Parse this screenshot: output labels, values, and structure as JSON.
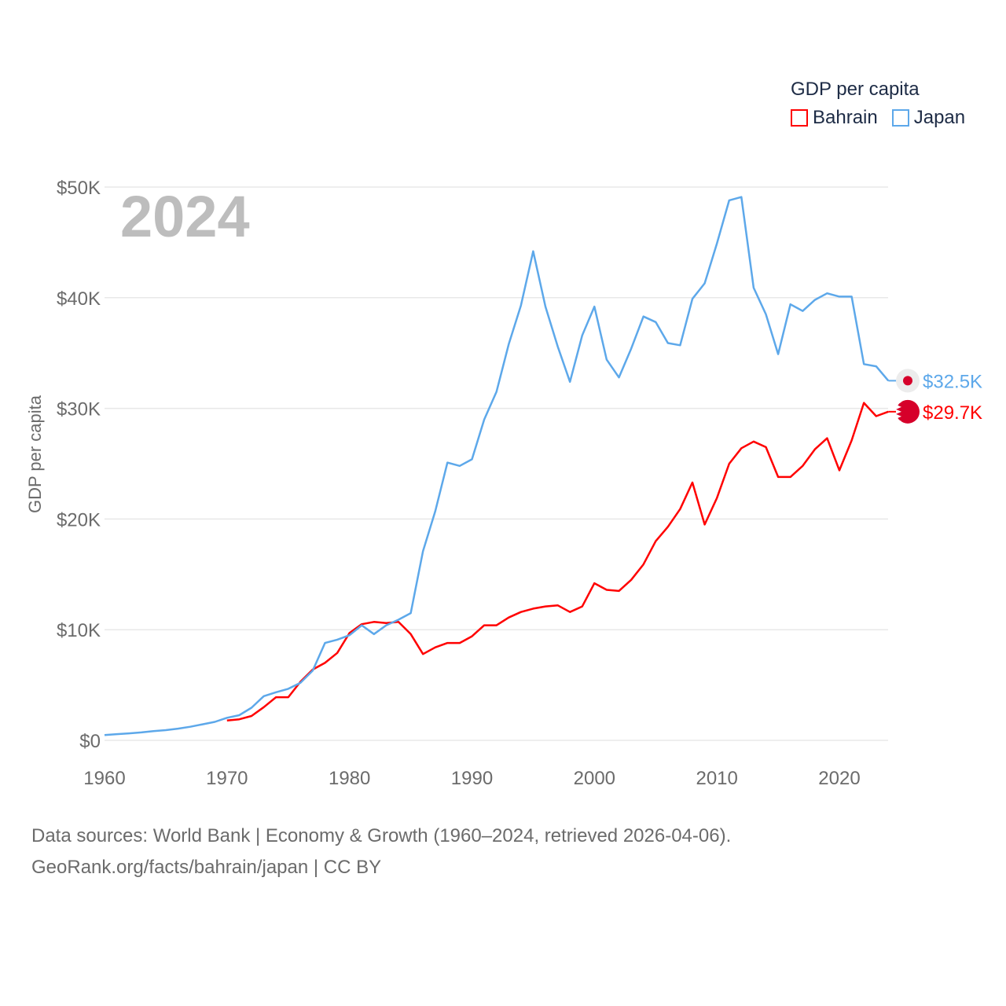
{
  "chart_data": {
    "type": "line",
    "title": "GDP per capita",
    "year_label": "2024",
    "xlabel": "",
    "ylabel": "GDP per capita",
    "xlim": [
      1960,
      2024
    ],
    "ylim": [
      0,
      50000
    ],
    "x_ticks": [
      1960,
      1970,
      1980,
      1990,
      2000,
      2010,
      2020
    ],
    "y_ticks": [
      0,
      10000,
      20000,
      30000,
      40000,
      50000
    ],
    "y_tick_labels": [
      "$0",
      "$10K",
      "$20K",
      "$30K",
      "$40K",
      "$50K"
    ],
    "grid": true,
    "legend_position": "top-right",
    "series": [
      {
        "name": "Bahrain",
        "color": "#ff0000",
        "end_label": "$29.7K",
        "start_year": 1970,
        "values": [
          1800,
          1900,
          2200,
          3000,
          3900,
          3900,
          5300,
          6400,
          7000,
          7900,
          9700,
          10500,
          10700,
          10600,
          10700,
          9600,
          7800,
          8400,
          8800,
          8800,
          9400,
          10400,
          10400,
          11100,
          11600,
          11900,
          12100,
          12200,
          11600,
          12100,
          14200,
          13600,
          13500,
          14500,
          15900,
          18000,
          19300,
          20900,
          23300,
          19500,
          21900,
          25000,
          26400,
          27000,
          26500,
          23800,
          23800,
          24800,
          26300,
          27300,
          24400,
          27100,
          30500,
          29300,
          29700
        ]
      },
      {
        "name": "Japan",
        "color": "#5da8ea",
        "end_label": "$32.5K",
        "start_year": 1960,
        "values": [
          480,
          560,
          630,
          720,
          840,
          920,
          1060,
          1230,
          1450,
          1670,
          2040,
          2270,
          2950,
          3990,
          4350,
          4660,
          5200,
          6300,
          8800,
          9100,
          9500,
          10400,
          9600,
          10400,
          10900,
          11500,
          17100,
          20700,
          25100,
          24800,
          25400,
          29000,
          31500,
          35800,
          39300,
          44200,
          39200,
          35600,
          32400,
          36600,
          39200,
          34400,
          32800,
          35400,
          38300,
          37800,
          35900,
          35700,
          39900,
          41300,
          44900,
          48800,
          49100,
          40900,
          38500,
          34900,
          39400,
          38800,
          39800,
          40400,
          40100,
          40100,
          34000,
          33800,
          32500
        ]
      }
    ]
  },
  "footer": {
    "line1": "Data sources: World Bank | Economy & Growth (1960–2024, retrieved 2026-04-06).",
    "line2": "GeoRank.org/facts/bahrain/japan | CC BY"
  }
}
